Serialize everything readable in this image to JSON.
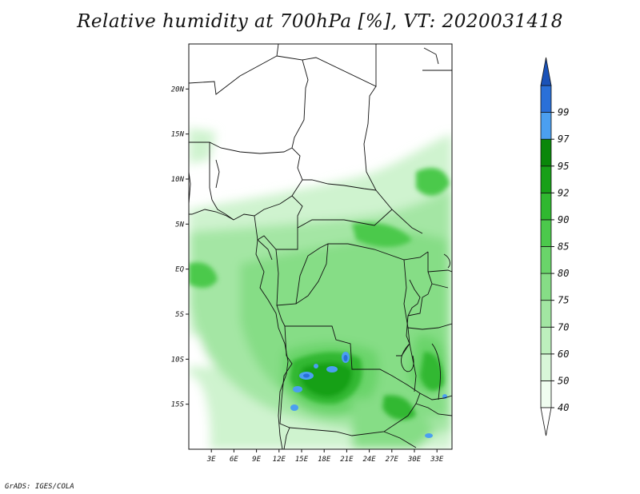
{
  "title": "Relative humidity at 700hPa [%], VT: 2020031418",
  "credit": "GrADS: IGES/COLA",
  "map": {
    "lat_range": [
      -20,
      25
    ],
    "lon_range": [
      0,
      35
    ],
    "lat_ticks": [
      {
        "value": 20,
        "label": "20N"
      },
      {
        "value": 15,
        "label": "15N"
      },
      {
        "value": 10,
        "label": "10N"
      },
      {
        "value": 5,
        "label": "5N"
      },
      {
        "value": 0,
        "label": "EQ"
      },
      {
        "value": -5,
        "label": "5S"
      },
      {
        "value": -10,
        "label": "10S"
      },
      {
        "value": -15,
        "label": "15S"
      }
    ],
    "lon_ticks": [
      {
        "value": 3,
        "label": "3E"
      },
      {
        "value": 6,
        "label": "6E"
      },
      {
        "value": 9,
        "label": "9E"
      },
      {
        "value": 12,
        "label": "12E"
      },
      {
        "value": 15,
        "label": "15E"
      },
      {
        "value": 18,
        "label": "18E"
      },
      {
        "value": 21,
        "label": "21E"
      },
      {
        "value": 24,
        "label": "24E"
      },
      {
        "value": 27,
        "label": "27E"
      },
      {
        "value": 30,
        "label": "30E"
      },
      {
        "value": 33,
        "label": "33E"
      }
    ]
  },
  "colorbar": {
    "levels": [
      {
        "label": "40",
        "color": "#f0fdf0"
      },
      {
        "label": "50",
        "color": "#d8f6d8"
      },
      {
        "label": "60",
        "color": "#bdefbd"
      },
      {
        "label": "70",
        "color": "#a2e6a2"
      },
      {
        "label": "75",
        "color": "#86dd86"
      },
      {
        "label": "80",
        "color": "#6ad46a"
      },
      {
        "label": "85",
        "color": "#4cc94c"
      },
      {
        "label": "90",
        "color": "#30b830"
      },
      {
        "label": "92",
        "color": "#18a018"
      },
      {
        "label": "95",
        "color": "#0a870a"
      },
      {
        "label": "97",
        "color": "#4b9ff0"
      },
      {
        "label": "99",
        "color": "#2a70d8"
      }
    ],
    "top_color": "#1a52b8",
    "bottom_color": "#ffffff"
  }
}
